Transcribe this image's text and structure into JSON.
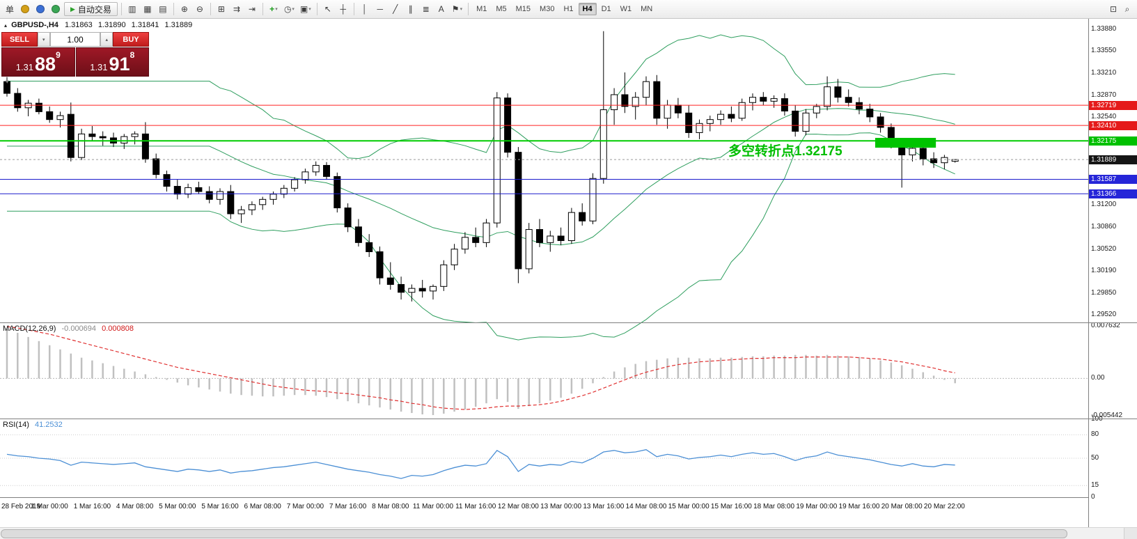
{
  "toolbar": {
    "new_order_label": "单",
    "autotrading_label": "自动交易",
    "icon_groups": [
      [
        {
          "name": "account-coin-icon",
          "glyph": "●",
          "color": "#d4a017"
        },
        {
          "name": "profile-icon",
          "glyph": "●",
          "color": "#3b6fd4"
        },
        {
          "name": "community-icon",
          "glyph": "●",
          "color": "#3aa655"
        }
      ],
      [
        {
          "name": "bar-chart-icon",
          "glyph": "▥"
        },
        {
          "name": "candlestick-chart-icon",
          "glyph": "▦"
        },
        {
          "name": "line-chart-icon",
          "glyph": "▤"
        }
      ],
      [
        {
          "name": "zoom-in-icon",
          "glyph": "⊕"
        },
        {
          "name": "zoom-out-icon",
          "glyph": "⊖"
        }
      ],
      [
        {
          "name": "tile-windows-icon",
          "glyph": "⊞"
        },
        {
          "name": "auto-scroll-icon",
          "glyph": "⇉"
        },
        {
          "name": "chart-shift-icon",
          "glyph": "⇥"
        }
      ],
      [
        {
          "name": "indicators-add-icon",
          "glyph": "+",
          "color": "#1a9c1a",
          "dropdown": true
        },
        {
          "name": "periods-icon",
          "glyph": "◷",
          "dropdown": true
        },
        {
          "name": "templates-icon",
          "glyph": "▣",
          "dropdown": true
        }
      ],
      [
        {
          "name": "cursor-icon",
          "glyph": "↖"
        },
        {
          "name": "crosshair-icon",
          "glyph": "┼"
        }
      ],
      [
        {
          "name": "vertical-line-icon",
          "glyph": "│"
        },
        {
          "name": "horizontal-line-icon",
          "glyph": "─"
        },
        {
          "name": "trendline-icon",
          "glyph": "╱"
        },
        {
          "name": "channel-icon",
          "glyph": "∥"
        },
        {
          "name": "fibonacci-icon",
          "glyph": "≣"
        },
        {
          "name": "text-tool-icon",
          "glyph": "A"
        },
        {
          "name": "arrows-tool-icon",
          "glyph": "⚑",
          "dropdown": true
        }
      ]
    ],
    "timeframes": [
      "M1",
      "M5",
      "M15",
      "M30",
      "H1",
      "H4",
      "D1",
      "W1",
      "MN"
    ],
    "active_timeframe": "H4",
    "right_icons": [
      {
        "name": "new-window-icon",
        "glyph": "⊡"
      },
      {
        "name": "search-icon",
        "glyph": "⌕"
      }
    ]
  },
  "chart_header": {
    "symbol": "GBPUSD-,H4",
    "open": "1.31863",
    "high": "1.31890",
    "low": "1.31841",
    "close": "1.31889"
  },
  "trade_panel": {
    "sell_label": "SELL",
    "buy_label": "BUY",
    "volume": "1.00",
    "sell_price": {
      "small": "1.31",
      "big": "88",
      "sup": "9"
    },
    "buy_price": {
      "small": "1.31",
      "big": "91",
      "sup": "8"
    }
  },
  "annotation": {
    "text": "多空转折点1.32175",
    "color": "#00be00"
  },
  "indicators": {
    "macd_label": "MACD(12,26,9)",
    "macd_value": "-0.000694",
    "macd_signal_value": "0.000808",
    "rsi_label": "RSI(14)",
    "rsi_value": "41.2532"
  },
  "axes": {
    "price_ticks": [
      {
        "label": "1.33880",
        "value": 1.3388
      },
      {
        "label": "1.33550",
        "value": 1.3355
      },
      {
        "label": "1.33210",
        "value": 1.3321
      },
      {
        "label": "1.32870",
        "value": 1.3287
      },
      {
        "label": "1.32540",
        "value": 1.3254
      },
      {
        "label": "1.31200",
        "value": 1.312
      },
      {
        "label": "1.30860",
        "value": 1.3086
      },
      {
        "label": "1.30520",
        "value": 1.3052
      },
      {
        "label": "1.30190",
        "value": 1.3019
      },
      {
        "label": "1.29850",
        "value": 1.2985
      },
      {
        "label": "1.29520",
        "value": 1.2952
      }
    ],
    "price_tags": [
      {
        "label": "1.32719",
        "value": 1.32719,
        "color": "#e51a1a"
      },
      {
        "label": "1.32410",
        "value": 1.3241,
        "color": "#e51a1a"
      },
      {
        "label": "1.32175",
        "value": 1.32175,
        "color": "#00c000"
      },
      {
        "label": "1.31889",
        "value": 1.31889,
        "color": "#151515"
      },
      {
        "label": "1.31587",
        "value": 1.31587,
        "color": "#2525d8"
      },
      {
        "label": "1.31366",
        "value": 1.31366,
        "color": "#2525d8"
      }
    ],
    "macd_ticks": [
      {
        "label": "0.007632",
        "value": 0.007632
      },
      {
        "label": "0.00",
        "value": 0
      },
      {
        "label": "-0.005442",
        "value": -0.005442
      }
    ],
    "rsi_ticks": [
      {
        "label": "100",
        "value": 100
      },
      {
        "label": "80",
        "value": 80
      },
      {
        "label": "50",
        "value": 50
      },
      {
        "label": "15",
        "value": 15
      },
      {
        "label": "0",
        "value": 0
      }
    ],
    "time_labels": [
      {
        "label": "28 Feb 2019",
        "i": 0
      },
      {
        "label": "1 Mar 00:00",
        "i": 4
      },
      {
        "label": "1 Mar 16:00",
        "i": 8
      },
      {
        "label": "4 Mar 08:00",
        "i": 12
      },
      {
        "label": "5 Mar 00:00",
        "i": 16
      },
      {
        "label": "5 Mar 16:00",
        "i": 20
      },
      {
        "label": "6 Mar 08:00",
        "i": 24
      },
      {
        "label": "7 Mar 00:00",
        "i": 28
      },
      {
        "label": "7 Mar 16:00",
        "i": 32
      },
      {
        "label": "8 Mar 08:00",
        "i": 36
      },
      {
        "label": "11 Mar 00:00",
        "i": 40
      },
      {
        "label": "11 Mar 16:00",
        "i": 44
      },
      {
        "label": "12 Mar 08:00",
        "i": 48
      },
      {
        "label": "13 Mar 00:00",
        "i": 52
      },
      {
        "label": "13 Mar 16:00",
        "i": 56
      },
      {
        "label": "14 Mar 08:00",
        "i": 60
      },
      {
        "label": "15 Mar 00:00",
        "i": 64
      },
      {
        "label": "15 Mar 16:00",
        "i": 68
      },
      {
        "label": "18 Mar 08:00",
        "i": 72
      },
      {
        "label": "19 Mar 00:00",
        "i": 76
      },
      {
        "label": "19 Mar 16:00",
        "i": 80
      },
      {
        "label": "20 Mar 08:00",
        "i": 84
      },
      {
        "label": "20 Mar 22:00",
        "i": 88
      }
    ]
  },
  "chart_data": {
    "type": "candlestick",
    "symbol": "GBPUSD",
    "timeframe": "H4",
    "price_axis": {
      "max": 1.3405,
      "min": 1.294
    },
    "macd_axis": {
      "max": 0.008,
      "min": -0.0058
    },
    "rsi_axis": {
      "max": 100,
      "min": 0
    },
    "candles": [
      [
        1.3308,
        1.3315,
        1.3285,
        1.329
      ],
      [
        1.329,
        1.3298,
        1.3262,
        1.3268
      ],
      [
        1.3268,
        1.328,
        1.3255,
        1.3275
      ],
      [
        1.3275,
        1.3282,
        1.3258,
        1.3262
      ],
      [
        1.3262,
        1.327,
        1.3245,
        1.325
      ],
      [
        1.325,
        1.3262,
        1.3238,
        1.3256
      ],
      [
        1.3258,
        1.3276,
        1.3186,
        1.3192
      ],
      [
        1.3192,
        1.3236,
        1.3188,
        1.3228
      ],
      [
        1.3228,
        1.324,
        1.3218,
        1.3224
      ],
      [
        1.3224,
        1.3232,
        1.321,
        1.3222
      ],
      [
        1.3222,
        1.323,
        1.3208,
        1.3214
      ],
      [
        1.3214,
        1.3228,
        1.3205,
        1.3224
      ],
      [
        1.3224,
        1.3232,
        1.3212,
        1.3228
      ],
      [
        1.3228,
        1.3246,
        1.3184,
        1.319
      ],
      [
        1.319,
        1.3198,
        1.316,
        1.3166
      ],
      [
        1.3166,
        1.3172,
        1.314,
        1.3148
      ],
      [
        1.3148,
        1.3158,
        1.3128,
        1.3136
      ],
      [
        1.3136,
        1.3152,
        1.313,
        1.3146
      ],
      [
        1.3146,
        1.3155,
        1.3136,
        1.314
      ],
      [
        1.314,
        1.3148,
        1.3122,
        1.3128
      ],
      [
        1.3128,
        1.3145,
        1.312,
        1.314
      ],
      [
        1.314,
        1.315,
        1.3098,
        1.3106
      ],
      [
        1.3106,
        1.3118,
        1.3092,
        1.3112
      ],
      [
        1.3112,
        1.3125,
        1.3104,
        1.312
      ],
      [
        1.312,
        1.3132,
        1.3112,
        1.3128
      ],
      [
        1.3128,
        1.314,
        1.312,
        1.3136
      ],
      [
        1.3136,
        1.315,
        1.313,
        1.3145
      ],
      [
        1.3145,
        1.3162,
        1.314,
        1.3158
      ],
      [
        1.3158,
        1.3175,
        1.3152,
        1.317
      ],
      [
        1.317,
        1.3186,
        1.3164,
        1.318
      ],
      [
        1.318,
        1.3185,
        1.3158,
        1.3163
      ],
      [
        1.3163,
        1.3169,
        1.3108,
        1.3115
      ],
      [
        1.3115,
        1.3122,
        1.3078,
        1.3086
      ],
      [
        1.3086,
        1.3098,
        1.3056,
        1.3062
      ],
      [
        1.3062,
        1.3075,
        1.304,
        1.3048
      ],
      [
        1.3048,
        1.3056,
        1.2998,
        1.3008
      ],
      [
        1.3008,
        1.3032,
        1.299,
        1.2998
      ],
      [
        1.2998,
        1.301,
        1.2975,
        1.2986
      ],
      [
        1.2986,
        1.2998,
        1.2972,
        1.2992
      ],
      [
        1.2992,
        1.3005,
        1.2978,
        1.2988
      ],
      [
        1.2988,
        1.2998,
        1.2975,
        1.2995
      ],
      [
        1.2995,
        1.3035,
        1.2988,
        1.3028
      ],
      [
        1.3028,
        1.306,
        1.302,
        1.3052
      ],
      [
        1.3052,
        1.3078,
        1.3045,
        1.307
      ],
      [
        1.307,
        1.3085,
        1.3055,
        1.3062
      ],
      [
        1.3062,
        1.3098,
        1.3055,
        1.3092
      ],
      [
        1.3092,
        1.3292,
        1.3085,
        1.3283
      ],
      [
        1.3283,
        1.329,
        1.3192,
        1.32
      ],
      [
        1.32,
        1.3208,
        1.3,
        1.3022
      ],
      [
        1.3022,
        1.3092,
        1.3015,
        1.3082
      ],
      [
        1.3082,
        1.3098,
        1.3055,
        1.3062
      ],
      [
        1.3062,
        1.308,
        1.3048,
        1.3072
      ],
      [
        1.3072,
        1.3085,
        1.3058,
        1.3065
      ],
      [
        1.3065,
        1.3115,
        1.306,
        1.3108
      ],
      [
        1.3108,
        1.3122,
        1.3088,
        1.3095
      ],
      [
        1.3095,
        1.3168,
        1.309,
        1.316
      ],
      [
        1.316,
        1.3385,
        1.3152,
        1.3265
      ],
      [
        1.3265,
        1.3298,
        1.3242,
        1.3288
      ],
      [
        1.3288,
        1.3322,
        1.326,
        1.327
      ],
      [
        1.327,
        1.3292,
        1.325,
        1.3284
      ],
      [
        1.3284,
        1.3316,
        1.3272,
        1.3308
      ],
      [
        1.3308,
        1.3318,
        1.3242,
        1.3252
      ],
      [
        1.3252,
        1.328,
        1.3236,
        1.3272
      ],
      [
        1.3272,
        1.3283,
        1.3252,
        1.326
      ],
      [
        1.326,
        1.3272,
        1.3222,
        1.323
      ],
      [
        1.323,
        1.325,
        1.322,
        1.3244
      ],
      [
        1.3244,
        1.3256,
        1.3232,
        1.325
      ],
      [
        1.325,
        1.3264,
        1.3242,
        1.3258
      ],
      [
        1.3258,
        1.327,
        1.3246,
        1.3252
      ],
      [
        1.3252,
        1.3282,
        1.3248,
        1.3276
      ],
      [
        1.3276,
        1.329,
        1.3264,
        1.3284
      ],
      [
        1.3284,
        1.3292,
        1.3272,
        1.3278
      ],
      [
        1.3278,
        1.3287,
        1.3268,
        1.3282
      ],
      [
        1.3282,
        1.329,
        1.3256,
        1.3263
      ],
      [
        1.3263,
        1.3272,
        1.3224,
        1.3232
      ],
      [
        1.3232,
        1.3266,
        1.3226,
        1.326
      ],
      [
        1.326,
        1.3274,
        1.3252,
        1.327
      ],
      [
        1.327,
        1.3316,
        1.3264,
        1.33
      ],
      [
        1.33,
        1.3312,
        1.3276,
        1.3284
      ],
      [
        1.3284,
        1.3296,
        1.327,
        1.3276
      ],
      [
        1.3276,
        1.3284,
        1.3258,
        1.3266
      ],
      [
        1.3266,
        1.3274,
        1.3246,
        1.3254
      ],
      [
        1.3254,
        1.326,
        1.323,
        1.3238
      ],
      [
        1.3238,
        1.3244,
        1.3206,
        1.3214
      ],
      [
        1.3214,
        1.3222,
        1.3146,
        1.3196
      ],
      [
        1.3196,
        1.3214,
        1.3186,
        1.3206
      ],
      [
        1.3206,
        1.3212,
        1.318,
        1.319
      ],
      [
        1.319,
        1.32,
        1.3176,
        1.3184
      ],
      [
        1.3184,
        1.3196,
        1.3174,
        1.3192
      ],
      [
        1.31863,
        1.3189,
        1.31841,
        1.31889
      ]
    ],
    "bollinger": {
      "period": 20,
      "deviation": 2,
      "color": "#2e9e5e"
    },
    "hlines": [
      {
        "value": 1.32719,
        "color": "#ff2020",
        "style": "solid",
        "width": 1
      },
      {
        "value": 1.3241,
        "color": "#ff2020",
        "style": "solid",
        "width": 1
      },
      {
        "value": 1.32175,
        "color": "#00cc00",
        "style": "solid",
        "width": 2
      },
      {
        "value": 1.31889,
        "color": "#9a9a9a",
        "style": "dash",
        "width": 1
      },
      {
        "value": 1.31587,
        "color": "#1a1acc",
        "style": "solid",
        "width": 1
      },
      {
        "value": 1.31366,
        "color": "#1a1acc",
        "style": "solid",
        "width": 1
      }
    ],
    "rect": {
      "i1": 81.5,
      "i2": 87.2,
      "p1": 1.3207,
      "p2": 1.3222,
      "color": "#00c400"
    },
    "macd": {
      "hist_color": "#c0c0c0",
      "signal_color": "#e03030",
      "histogram": [
        0.0072,
        0.0066,
        0.006,
        0.0054,
        0.0048,
        0.0042,
        0.0036,
        0.003,
        0.0026,
        0.0022,
        0.0018,
        0.0014,
        0.001,
        0.0006,
        0.0002,
        -0.0002,
        -0.0006,
        -0.001,
        -0.0013,
        -0.0016,
        -0.0019,
        -0.0022,
        -0.0024,
        -0.0025,
        -0.0026,
        -0.0026,
        -0.0025,
        -0.0024,
        -0.0024,
        -0.0025,
        -0.0027,
        -0.003,
        -0.0033,
        -0.0036,
        -0.0039,
        -0.0042,
        -0.0045,
        -0.0048,
        -0.005,
        -0.0052,
        -0.0053,
        -0.0051,
        -0.0048,
        -0.0045,
        -0.0041,
        -0.0036,
        -0.003,
        -0.0034,
        -0.0044,
        -0.004,
        -0.0036,
        -0.0032,
        -0.0028,
        -0.0022,
        -0.0015,
        -0.0007,
        0.0002,
        0.001,
        0.0016,
        0.0021,
        0.0025,
        0.0027,
        0.0029,
        0.003,
        0.003,
        0.0029,
        0.0029,
        0.003,
        0.003,
        0.0031,
        0.0032,
        0.0032,
        0.0033,
        0.0033,
        0.0034,
        0.0034,
        0.0033,
        0.0034,
        0.0033,
        0.0032,
        0.0031,
        0.0029,
        0.0026,
        0.0023,
        0.0019,
        0.0014,
        0.0009,
        0.0004,
        -0.0002,
        -0.000694
      ],
      "signal": [
        0.0075,
        0.0073,
        0.007,
        0.0067,
        0.0064,
        0.006,
        0.0056,
        0.0052,
        0.0048,
        0.0044,
        0.004,
        0.0036,
        0.0032,
        0.0028,
        0.0024,
        0.002,
        0.0016,
        0.0013,
        0.001,
        0.0007,
        0.0004,
        0.0001,
        -0.0002,
        -0.0005,
        -0.0008,
        -0.0011,
        -0.0013,
        -0.0015,
        -0.0017,
        -0.0018,
        -0.0019,
        -0.0021,
        -0.0022,
        -0.0024,
        -0.0026,
        -0.0028,
        -0.0031,
        -0.0033,
        -0.0036,
        -0.0038,
        -0.0041,
        -0.0043,
        -0.0044,
        -0.0045,
        -0.0044,
        -0.0043,
        -0.0041,
        -0.004,
        -0.004,
        -0.0039,
        -0.0038,
        -0.0036,
        -0.0033,
        -0.0029,
        -0.0025,
        -0.002,
        -0.0014,
        -0.0008,
        -0.0002,
        0.0004,
        0.0009,
        0.0013,
        0.0017,
        0.002,
        0.0022,
        0.0024,
        0.0025,
        0.0026,
        0.0027,
        0.0028,
        0.0029,
        0.0029,
        0.003,
        0.003,
        0.003,
        0.0031,
        0.0031,
        0.0031,
        0.0031,
        0.0031,
        0.003,
        0.0029,
        0.0028,
        0.0026,
        0.0024,
        0.0021,
        0.0018,
        0.0015,
        0.0011,
        0.000808
      ]
    },
    "rsi": {
      "color": "#4b8fd5",
      "levels": [
        80,
        50,
        15
      ],
      "values": [
        55,
        53,
        52,
        50,
        49,
        47,
        41,
        45,
        44,
        43,
        42,
        43,
        44,
        39,
        37,
        35,
        33,
        36,
        35,
        33,
        35,
        31,
        33,
        34,
        36,
        38,
        39,
        41,
        43,
        45,
        42,
        39,
        36,
        34,
        32,
        29,
        27,
        24,
        28,
        27,
        29,
        34,
        38,
        41,
        40,
        43,
        60,
        52,
        33,
        42,
        40,
        42,
        41,
        46,
        44,
        50,
        58,
        60,
        57,
        58,
        61,
        52,
        55,
        53,
        49,
        51,
        52,
        54,
        52,
        55,
        57,
        55,
        56,
        52,
        47,
        51,
        53,
        58,
        54,
        52,
        50,
        48,
        45,
        42,
        40,
        43,
        40,
        39,
        42,
        41.2532
      ]
    }
  }
}
